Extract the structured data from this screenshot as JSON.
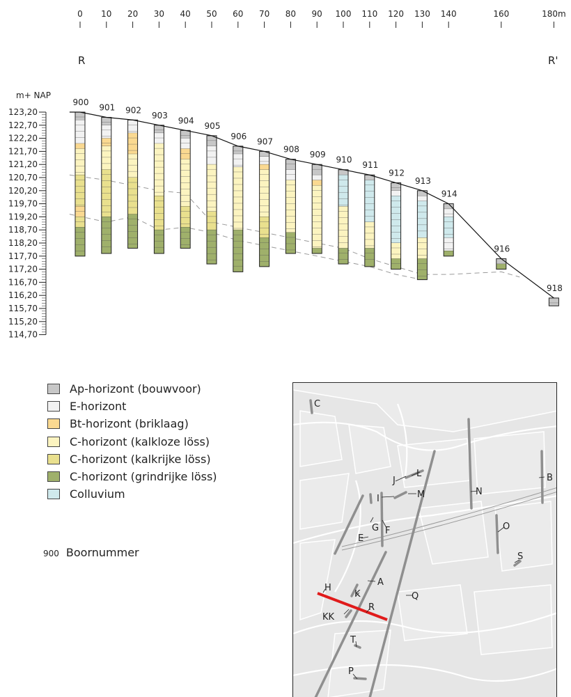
{
  "profile": {
    "endpoints": {
      "left": "R",
      "right": "R'"
    },
    "distance_ticks": [
      {
        "d": 0,
        "label": "0"
      },
      {
        "d": 10,
        "label": "10"
      },
      {
        "d": 20,
        "label": "20"
      },
      {
        "d": 30,
        "label": "30"
      },
      {
        "d": 40,
        "label": "40"
      },
      {
        "d": 50,
        "label": "50"
      },
      {
        "d": 60,
        "label": "60"
      },
      {
        "d": 70,
        "label": "70"
      },
      {
        "d": 80,
        "label": "80"
      },
      {
        "d": 90,
        "label": "90"
      },
      {
        "d": 100,
        "label": "100"
      },
      {
        "d": 110,
        "label": "110"
      },
      {
        "d": 120,
        "label": "120"
      },
      {
        "d": 130,
        "label": "130"
      },
      {
        "d": 140,
        "label": "140"
      },
      {
        "d": 160,
        "label": "160"
      },
      {
        "d": 180,
        "label": "180m"
      }
    ],
    "elevation_unit": "m+ NAP",
    "elevation_ticks": [
      "123,20",
      "122,70",
      "122,20",
      "121,70",
      "121,20",
      "120,70",
      "120,20",
      "119,70",
      "119,20",
      "118,70",
      "118,20",
      "117,70",
      "117,20",
      "116,70",
      "116,20",
      "115,70",
      "115,20",
      "114,70"
    ],
    "elevation_values": [
      123.2,
      122.7,
      122.2,
      121.7,
      121.2,
      120.7,
      120.2,
      119.7,
      119.2,
      118.7,
      118.2,
      117.7,
      117.2,
      116.7,
      116.2,
      115.7,
      115.2,
      114.7
    ],
    "boreholes": [
      {
        "id": "900",
        "d": 0,
        "top": 123.2,
        "layers": [
          [
            "Ap",
            122.9
          ],
          [
            "E",
            122.0
          ],
          [
            "Bt",
            121.8
          ],
          [
            "Ck",
            120.8
          ],
          [
            "Cr",
            119.6
          ],
          [
            "Bt",
            119.2
          ],
          [
            "Cr",
            118.8
          ],
          [
            "Cg",
            117.7
          ]
        ]
      },
      {
        "id": "901",
        "d": 10,
        "top": 123.0,
        "layers": [
          [
            "Ap",
            122.7
          ],
          [
            "E",
            122.2
          ],
          [
            "Bt",
            121.9
          ],
          [
            "Ck",
            121.0
          ],
          [
            "Cr",
            119.2
          ],
          [
            "Cg",
            117.8
          ]
        ]
      },
      {
        "id": "902",
        "d": 20,
        "top": 122.9,
        "layers": [
          [
            "E",
            122.4
          ],
          [
            "Bt",
            121.6
          ],
          [
            "Ck",
            120.7
          ],
          [
            "Cr",
            119.3
          ],
          [
            "Cg",
            118.0
          ]
        ]
      },
      {
        "id": "903",
        "d": 30,
        "top": 122.7,
        "layers": [
          [
            "Ap",
            122.4
          ],
          [
            "E",
            122.0
          ],
          [
            "Ck",
            120.0
          ],
          [
            "Cr",
            118.7
          ],
          [
            "Cg",
            117.8
          ]
        ]
      },
      {
        "id": "904",
        "d": 40,
        "top": 122.5,
        "layers": [
          [
            "Ap",
            122.2
          ],
          [
            "E",
            121.8
          ],
          [
            "Bt",
            121.4
          ],
          [
            "Ck",
            119.6
          ],
          [
            "Cr",
            118.8
          ],
          [
            "Cg",
            118.0
          ]
        ]
      },
      {
        "id": "905",
        "d": 50,
        "top": 122.3,
        "layers": [
          [
            "Ap",
            121.9
          ],
          [
            "E",
            121.2
          ],
          [
            "Ck",
            119.4
          ],
          [
            "Cr",
            118.7
          ],
          [
            "Cg",
            117.4
          ]
        ]
      },
      {
        "id": "906",
        "d": 60,
        "top": 121.9,
        "layers": [
          [
            "Ap",
            121.6
          ],
          [
            "E",
            121.1
          ],
          [
            "Ck",
            118.7
          ],
          [
            "Cg",
            117.1
          ]
        ]
      },
      {
        "id": "907",
        "d": 70,
        "top": 121.7,
        "layers": [
          [
            "Ap",
            121.5
          ],
          [
            "E",
            121.2
          ],
          [
            "Bt",
            121.0
          ],
          [
            "Ck",
            119.2
          ],
          [
            "Cr",
            118.4
          ],
          [
            "Cg",
            117.3
          ]
        ]
      },
      {
        "id": "908",
        "d": 80,
        "top": 121.4,
        "layers": [
          [
            "Ap",
            121.0
          ],
          [
            "E",
            120.6
          ],
          [
            "Ck",
            118.6
          ],
          [
            "Cg",
            117.8
          ]
        ]
      },
      {
        "id": "909",
        "d": 90,
        "top": 121.2,
        "layers": [
          [
            "Ap",
            120.8
          ],
          [
            "E",
            120.6
          ],
          [
            "Bt",
            120.4
          ],
          [
            "Ck",
            118.0
          ],
          [
            "Cg",
            117.8
          ]
        ]
      },
      {
        "id": "910",
        "d": 100,
        "top": 121.0,
        "layers": [
          [
            "Ap",
            120.8
          ],
          [
            "Co",
            119.6
          ],
          [
            "Ck",
            118.0
          ],
          [
            "Cg",
            117.4
          ]
        ]
      },
      {
        "id": "911",
        "d": 110,
        "top": 120.8,
        "layers": [
          [
            "Ap",
            120.6
          ],
          [
            "Co",
            119.0
          ],
          [
            "Ck",
            118.0
          ],
          [
            "Cg",
            117.3
          ]
        ]
      },
      {
        "id": "912",
        "d": 120,
        "top": 120.5,
        "layers": [
          [
            "Ap",
            120.2
          ],
          [
            "E",
            120.0
          ],
          [
            "Co",
            118.2
          ],
          [
            "Ck",
            117.6
          ],
          [
            "Cg",
            117.2
          ]
        ]
      },
      {
        "id": "913",
        "d": 130,
        "top": 120.2,
        "layers": [
          [
            "Ap",
            120.0
          ],
          [
            "E",
            119.8
          ],
          [
            "Co",
            118.4
          ],
          [
            "Ck",
            117.6
          ],
          [
            "Cg",
            116.8
          ]
        ]
      },
      {
        "id": "914",
        "d": 140,
        "top": 119.7,
        "layers": [
          [
            "Ap",
            119.5
          ],
          [
            "E",
            119.2
          ],
          [
            "Co",
            118.4
          ],
          [
            "E",
            117.9
          ],
          [
            "Cg",
            117.7
          ]
        ]
      },
      {
        "id": "916",
        "d": 160,
        "top": 117.6,
        "layers": [
          [
            "Ap",
            117.4
          ],
          [
            "Cg",
            117.2
          ]
        ]
      },
      {
        "id": "918",
        "d": 180,
        "top": 116.1,
        "layers": [
          [
            "Ap",
            115.8
          ]
        ]
      }
    ],
    "surface_line": [
      [
        -4,
        123.2
      ],
      [
        0,
        123.2
      ],
      [
        10,
        123.0
      ],
      [
        20,
        122.9
      ],
      [
        30,
        122.7
      ],
      [
        40,
        122.5
      ],
      [
        50,
        122.3
      ],
      [
        60,
        121.9
      ],
      [
        70,
        121.7
      ],
      [
        80,
        121.4
      ],
      [
        90,
        121.2
      ],
      [
        100,
        121.0
      ],
      [
        110,
        120.8
      ],
      [
        120,
        120.5
      ],
      [
        130,
        120.2
      ],
      [
        140,
        119.7
      ],
      [
        160,
        117.6
      ],
      [
        180,
        116.1
      ]
    ],
    "boundary_upper": [
      [
        -4,
        120.8
      ],
      [
        10,
        120.6
      ],
      [
        20,
        120.4
      ],
      [
        30,
        120.2
      ],
      [
        40,
        120.1
      ],
      [
        50,
        119.0
      ],
      [
        60,
        118.8
      ],
      [
        70,
        118.6
      ],
      [
        80,
        118.4
      ],
      [
        90,
        118.2
      ],
      [
        100,
        118.0
      ],
      [
        110,
        117.6
      ],
      [
        120,
        117.3
      ],
      [
        130,
        117.0
      ],
      [
        140,
        117.0
      ],
      [
        160,
        117.1
      ],
      [
        167,
        116.9
      ]
    ],
    "boundary_lower": [
      [
        -4,
        119.3
      ],
      [
        10,
        119.0
      ],
      [
        20,
        119.2
      ],
      [
        30,
        118.7
      ],
      [
        40,
        118.8
      ],
      [
        50,
        118.6
      ],
      [
        60,
        118.3
      ],
      [
        70,
        118.1
      ],
      [
        80,
        117.9
      ],
      [
        90,
        117.7
      ],
      [
        100,
        117.5
      ],
      [
        110,
        117.3
      ],
      [
        120,
        117.0
      ],
      [
        130,
        116.8
      ]
    ]
  },
  "legend": {
    "items": [
      {
        "key": "Ap",
        "label": "Ap-horizont (bouwvoor)",
        "color": "#c7c7c7"
      },
      {
        "key": "E",
        "label": "E-horizont",
        "color": "#f2f2f2"
      },
      {
        "key": "Bt",
        "label": "Bt-horizont (briklaag)",
        "color": "#fad991"
      },
      {
        "key": "Ck",
        "label": "C-horizont (kalkloze löss)",
        "color": "#fcf4c0"
      },
      {
        "key": "Cr",
        "label": "C-horizont (kalkrijke löss)",
        "color": "#e9e08e"
      },
      {
        "key": "Cg",
        "label": "C-horizont (grindrijke löss)",
        "color": "#9fb06b"
      },
      {
        "key": "Co",
        "label": "Colluvium",
        "color": "#cfe9ec"
      }
    ],
    "number_example": "900",
    "number_label": "Boornummer"
  },
  "map": {
    "labels": [
      "C",
      "B",
      "J",
      "L",
      "I",
      "M",
      "N",
      "G",
      "F",
      "O",
      "E",
      "S",
      "A",
      "H",
      "K",
      "Q",
      "KK",
      "R",
      "T",
      "P"
    ]
  }
}
